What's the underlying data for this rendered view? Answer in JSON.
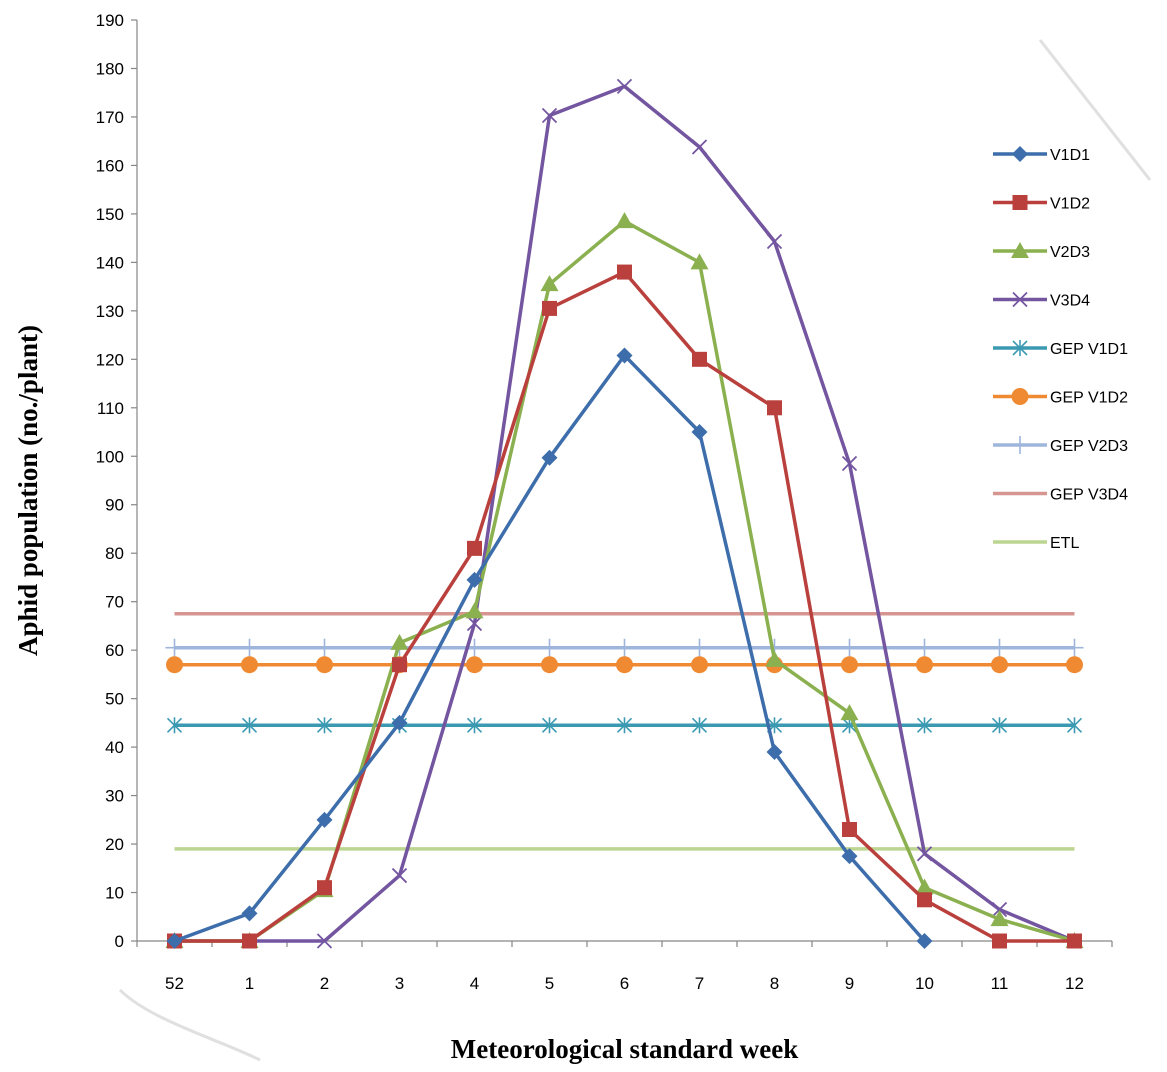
{
  "chart_data": {
    "type": "line",
    "title": "",
    "xlabel": "Meteorological standard week",
    "ylabel": "Aphid population (no./plant)",
    "categories": [
      "52",
      "1",
      "2",
      "3",
      "4",
      "5",
      "6",
      "7",
      "8",
      "9",
      "10",
      "11",
      "12"
    ],
    "ylim": [
      0,
      190
    ],
    "yticks": [
      0,
      10,
      20,
      30,
      40,
      50,
      60,
      70,
      80,
      90,
      100,
      110,
      120,
      130,
      140,
      150,
      160,
      170,
      180,
      190
    ],
    "grid": false,
    "legend_position": "right",
    "series": [
      {
        "name": "V1D1",
        "color": "#3d6eab",
        "marker": "diamond",
        "values": [
          0,
          5.7,
          25,
          45,
          74.5,
          99.7,
          120.8,
          105,
          39,
          17.5,
          0,
          null,
          null
        ]
      },
      {
        "name": "V1D2",
        "color": "#b9403c",
        "marker": "square",
        "values": [
          0,
          0,
          11,
          57,
          81,
          130.5,
          138,
          120,
          110,
          23,
          8.5,
          0,
          0
        ]
      },
      {
        "name": "V2D3",
        "color": "#8bb04f",
        "marker": "triangle",
        "values": [
          0,
          0,
          10.5,
          61.5,
          68,
          135.5,
          148.5,
          140,
          58,
          47,
          11,
          4.5,
          0
        ]
      },
      {
        "name": "V3D4",
        "color": "#7355a0",
        "marker": "x",
        "values": [
          0,
          0,
          0,
          13.5,
          65.5,
          170.3,
          176.3,
          163.8,
          144.3,
          98.5,
          18,
          6.5,
          0
        ]
      },
      {
        "name": "GEP V1D1",
        "color": "#3b9ab2",
        "marker": "star",
        "values": [
          44.5,
          44.5,
          44.5,
          44.5,
          44.5,
          44.5,
          44.5,
          44.5,
          44.5,
          44.5,
          44.5,
          44.5,
          44.5
        ]
      },
      {
        "name": "GEP V1D2",
        "color": "#ef8a33",
        "marker": "circle",
        "values": [
          57,
          57,
          57,
          57,
          57,
          57,
          57,
          57,
          57,
          57,
          57,
          57,
          57
        ]
      },
      {
        "name": "GEP V2D3",
        "color": "#9fb6dc",
        "marker": "plus",
        "values": [
          60.5,
          60.5,
          60.5,
          60.5,
          60.5,
          60.5,
          60.5,
          60.5,
          60.5,
          60.5,
          60.5,
          60.5,
          60.5
        ]
      },
      {
        "name": "GEP V3D4",
        "color": "#d79591",
        "marker": "none",
        "values": [
          67.5,
          67.5,
          67.5,
          67.5,
          67.5,
          67.5,
          67.5,
          67.5,
          67.5,
          67.5,
          67.5,
          67.5,
          67.5
        ]
      },
      {
        "name": "ETL",
        "color": "#bcd591",
        "marker": "none",
        "values": [
          19,
          19,
          19,
          19,
          19,
          19,
          19,
          19,
          19,
          19,
          19,
          19,
          19
        ]
      }
    ]
  }
}
